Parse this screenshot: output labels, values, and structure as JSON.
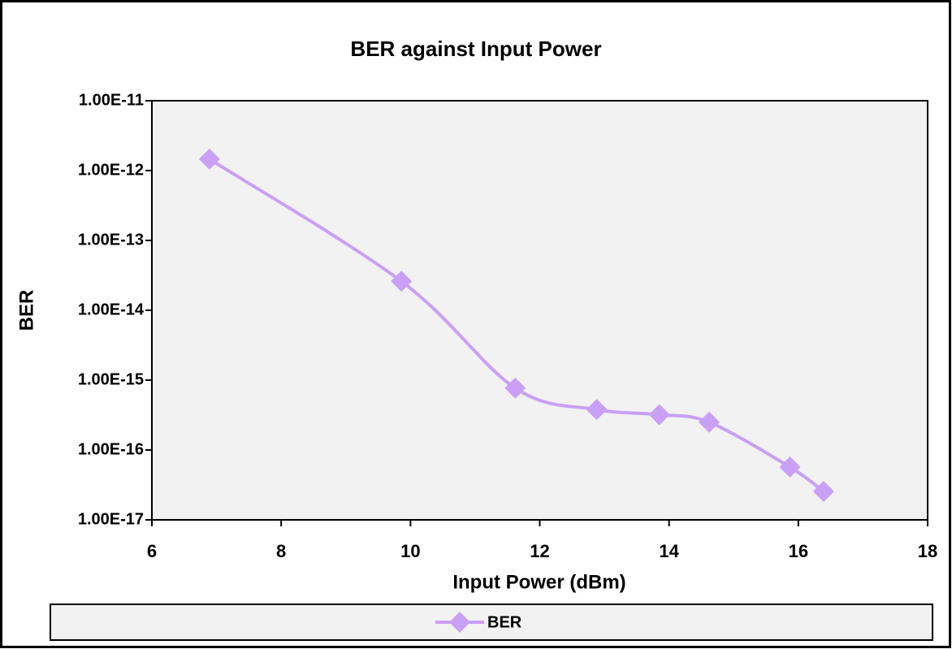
{
  "chart_data": {
    "type": "line",
    "title": "BER against Input Power",
    "x_label": "Input Power (dBm)",
    "y_label": "BER",
    "x": [
      6.89,
      9.86,
      11.62,
      12.88,
      13.85,
      14.62,
      15.87,
      16.39
    ],
    "series": [
      {
        "name": "BER",
        "color": "#c9a0f5",
        "values": [
          1.46e-12,
          2.6e-14,
          7.7e-16,
          3.8e-16,
          3.2e-16,
          2.5e-16,
          5.7e-17,
          2.55e-17
        ]
      }
    ],
    "xlim": [
      6,
      18
    ],
    "xticks": [
      6,
      8,
      10,
      12,
      14,
      16,
      18
    ],
    "ylim": [
      1e-17,
      1e-11
    ],
    "yticks": [
      {
        "value": 1e-11,
        "label": "1.00E-11"
      },
      {
        "value": 1e-12,
        "label": "1.00E-12"
      },
      {
        "value": 1e-13,
        "label": "1.00E-13"
      },
      {
        "value": 1e-14,
        "label": "1.00E-14"
      },
      {
        "value": 1e-15,
        "label": "1.00E-15"
      },
      {
        "value": 1e-16,
        "label": "1.00E-16"
      },
      {
        "value": 1e-17,
        "label": "1.00E-17"
      }
    ],
    "y_log_scale": true,
    "smooth": true,
    "legend": "bottom"
  }
}
